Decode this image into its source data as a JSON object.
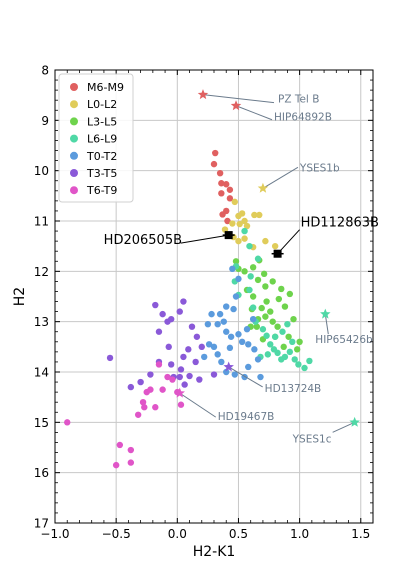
{
  "chart_data": {
    "type": "scatter",
    "xlabel": "H2-K1",
    "ylabel": "H2",
    "xlim": [
      -1.0,
      1.6
    ],
    "ylim": [
      17,
      8
    ],
    "y_inverted": true,
    "grid": true,
    "legend_placement": "top-left",
    "xticks": [
      "−1.0",
      "−0.5",
      "0.0",
      "0.5",
      "1.0",
      "1.5"
    ],
    "yticks": [
      "8",
      "9",
      "10",
      "11",
      "12",
      "13",
      "14",
      "15",
      "16",
      "17"
    ],
    "series": [
      {
        "name": "M6-M9",
        "color": "#e06060",
        "points": [
          [
            0.3,
            9.87
          ],
          [
            0.31,
            9.65
          ],
          [
            0.35,
            10.05
          ],
          [
            0.36,
            10.25
          ],
          [
            0.4,
            10.27
          ],
          [
            0.43,
            10.38
          ],
          [
            0.36,
            10.45
          ],
          [
            0.43,
            10.55
          ],
          [
            0.4,
            10.8
          ],
          [
            0.37,
            10.87
          ],
          [
            0.41,
            11.0
          ]
        ]
      },
      {
        "name": "L0-L2",
        "color": "#e0cc5a",
        "points": [
          [
            0.47,
            10.62
          ],
          [
            0.5,
            10.9
          ],
          [
            0.53,
            10.85
          ],
          [
            0.45,
            11.05
          ],
          [
            0.51,
            11.06
          ],
          [
            0.55,
            11.0
          ],
          [
            0.57,
            11.1
          ],
          [
            0.63,
            10.88
          ],
          [
            0.67,
            10.88
          ],
          [
            0.39,
            11.17
          ],
          [
            0.46,
            11.32
          ],
          [
            0.5,
            11.4
          ],
          [
            0.55,
            11.35
          ],
          [
            0.72,
            11.4
          ],
          [
            0.62,
            11.52
          ],
          [
            0.8,
            11.5
          ]
        ]
      },
      {
        "name": "L3-L5",
        "color": "#6ed34c",
        "points": [
          [
            0.48,
            11.8
          ],
          [
            0.5,
            11.95
          ],
          [
            0.55,
            12.0
          ],
          [
            0.62,
            11.92
          ],
          [
            0.67,
            11.78
          ],
          [
            0.71,
            12.05
          ],
          [
            0.66,
            12.17
          ],
          [
            0.57,
            12.37
          ],
          [
            0.62,
            12.5
          ],
          [
            0.72,
            12.3
          ],
          [
            0.78,
            12.2
          ],
          [
            0.85,
            12.35
          ],
          [
            0.73,
            12.6
          ],
          [
            0.83,
            12.55
          ],
          [
            0.92,
            12.45
          ],
          [
            0.61,
            12.75
          ],
          [
            0.69,
            12.73
          ],
          [
            0.76,
            12.8
          ],
          [
            0.88,
            12.7
          ],
          [
            0.95,
            12.95
          ],
          [
            0.66,
            12.95
          ],
          [
            0.72,
            12.9
          ],
          [
            0.82,
            13.1
          ],
          [
            0.78,
            13.0
          ],
          [
            0.91,
            13.3
          ],
          [
            1.0,
            13.4
          ],
          [
            0.87,
            13.5
          ],
          [
            0.98,
            13.55
          ],
          [
            0.7,
            13.35
          ],
          [
            0.8,
            13.3
          ],
          [
            0.6,
            13.1
          ],
          [
            0.65,
            13.1
          ]
        ]
      },
      {
        "name": "L6-L9",
        "color": "#4fd8a6",
        "points": [
          [
            0.59,
            12.37
          ],
          [
            0.62,
            12.72
          ],
          [
            0.64,
            13.0
          ],
          [
            0.7,
            13.15
          ],
          [
            0.73,
            13.28
          ],
          [
            0.76,
            13.45
          ],
          [
            0.79,
            13.55
          ],
          [
            0.82,
            13.62
          ],
          [
            0.85,
            13.75
          ],
          [
            0.88,
            13.7
          ],
          [
            0.92,
            13.6
          ],
          [
            0.96,
            13.75
          ],
          [
            0.99,
            13.85
          ],
          [
            1.04,
            13.92
          ],
          [
            1.08,
            13.78
          ],
          [
            0.68,
            13.7
          ],
          [
            0.74,
            13.65
          ],
          [
            0.8,
            13.3
          ],
          [
            0.86,
            13.2
          ],
          [
            0.9,
            13.05
          ],
          [
            0.94,
            13.4
          ],
          [
            0.47,
            12.2
          ],
          [
            0.5,
            12.47
          ],
          [
            0.48,
            11.9
          ],
          [
            0.55,
            11.2
          ],
          [
            0.59,
            11.5
          ],
          [
            0.66,
            11.75
          ],
          [
            0.6,
            12.1
          ]
        ]
      },
      {
        "name": "T0-T2",
        "color": "#5b9bdd",
        "points": [
          [
            0.45,
            11.95
          ],
          [
            0.5,
            12.15
          ],
          [
            0.48,
            12.5
          ],
          [
            0.46,
            12.75
          ],
          [
            0.4,
            12.7
          ],
          [
            0.35,
            12.85
          ],
          [
            0.28,
            12.85
          ],
          [
            0.25,
            13.05
          ],
          [
            0.33,
            13.05
          ],
          [
            0.38,
            13.0
          ],
          [
            0.4,
            13.2
          ],
          [
            0.44,
            13.3
          ],
          [
            0.5,
            13.25
          ],
          [
            0.53,
            13.4
          ],
          [
            0.58,
            13.45
          ],
          [
            0.63,
            13.55
          ],
          [
            0.66,
            13.75
          ],
          [
            0.58,
            13.9
          ],
          [
            0.55,
            14.1
          ],
          [
            0.68,
            14.1
          ],
          [
            0.47,
            14.05
          ],
          [
            0.4,
            14.0
          ],
          [
            0.36,
            13.8
          ],
          [
            0.33,
            13.65
          ],
          [
            0.3,
            13.5
          ],
          [
            0.26,
            13.45
          ],
          [
            0.22,
            13.7
          ],
          [
            0.43,
            13.52
          ],
          [
            0.57,
            13.15
          ],
          [
            0.62,
            12.95
          ]
        ]
      },
      {
        "name": "T3-T5",
        "color": "#8a59d8",
        "points": [
          [
            -0.55,
            13.72
          ],
          [
            -0.18,
            12.67
          ],
          [
            -0.12,
            12.85
          ],
          [
            -0.08,
            13.0
          ],
          [
            -0.05,
            12.95
          ],
          [
            0.02,
            12.8
          ],
          [
            0.05,
            12.6
          ],
          [
            0.12,
            13.1
          ],
          [
            0.16,
            13.3
          ],
          [
            0.2,
            13.5
          ],
          [
            0.09,
            13.55
          ],
          [
            0.05,
            13.7
          ],
          [
            0.03,
            13.95
          ],
          [
            -0.05,
            13.85
          ],
          [
            -0.03,
            14.1
          ],
          [
            0.1,
            14.08
          ],
          [
            0.15,
            13.8
          ],
          [
            0.18,
            14.15
          ],
          [
            0.06,
            14.25
          ],
          [
            0.02,
            14.1
          ],
          [
            -0.07,
            13.5
          ],
          [
            -0.15,
            13.8
          ],
          [
            -0.22,
            14.05
          ],
          [
            -0.3,
            14.2
          ],
          [
            -0.38,
            14.3
          ],
          [
            -0.15,
            13.2
          ],
          [
            0.3,
            14.05
          ]
        ]
      },
      {
        "name": "T6-T9",
        "color": "#e055c8",
        "points": [
          [
            -0.9,
            15.0
          ],
          [
            -0.5,
            15.85
          ],
          [
            -0.47,
            15.45
          ],
          [
            -0.38,
            15.55
          ],
          [
            -0.38,
            15.8
          ],
          [
            -0.32,
            14.85
          ],
          [
            -0.28,
            14.6
          ],
          [
            -0.25,
            14.4
          ],
          [
            -0.22,
            14.35
          ],
          [
            -0.18,
            14.7
          ],
          [
            -0.12,
            14.35
          ],
          [
            -0.15,
            13.85
          ],
          [
            -0.08,
            14.1
          ],
          [
            -0.04,
            14.15
          ],
          [
            0.0,
            14.4
          ],
          [
            0.03,
            14.65
          ],
          [
            -0.27,
            14.7
          ]
        ]
      }
    ],
    "featured_objects": [
      {
        "name": "PZ Tel B",
        "x": 0.21,
        "y": 8.49,
        "marker": "star",
        "color": "#e06060",
        "label_style": "light"
      },
      {
        "name": "HIP64892B",
        "x": 0.48,
        "y": 8.71,
        "marker": "star",
        "color": "#e06060",
        "label_style": "light"
      },
      {
        "name": "YSES1b",
        "x": 0.7,
        "y": 10.35,
        "marker": "star",
        "color": "#e0cc5a",
        "label_style": "light"
      },
      {
        "name": "HD112863B",
        "x": 0.82,
        "y": 11.65,
        "marker": "square",
        "color": "#000000",
        "label_style": "bold"
      },
      {
        "name": "HD206505B",
        "x": 0.42,
        "y": 11.28,
        "marker": "square",
        "color": "#000000",
        "label_style": "bold"
      },
      {
        "name": "HIP65426b",
        "x": 1.21,
        "y": 12.85,
        "marker": "star",
        "color": "#4fd8a6",
        "label_style": "light"
      },
      {
        "name": "HD13724B",
        "x": 0.42,
        "y": 13.9,
        "marker": "star",
        "color": "#8a59d8",
        "label_style": "light"
      },
      {
        "name": "HD19467B",
        "x": 0.02,
        "y": 14.42,
        "marker": "star",
        "color": "#e055c8",
        "label_style": "light"
      },
      {
        "name": "YSES1c",
        "x": 1.45,
        "y": 15.0,
        "marker": "star",
        "color": "#4fd8a6",
        "label_style": "light"
      }
    ]
  }
}
